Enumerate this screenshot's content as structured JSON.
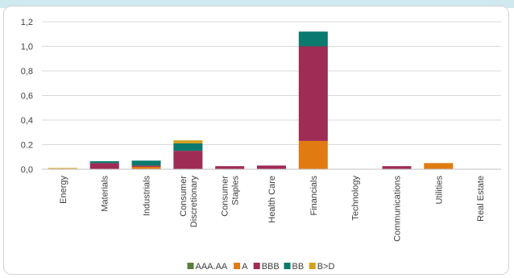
{
  "chart_data": {
    "type": "bar",
    "stacked": true,
    "categories": [
      "Energy",
      "Materials",
      "Industrials",
      "Consumer Discretionary",
      "Consumer Staples",
      "Health Care",
      "Financials",
      "Technology",
      "Communications",
      "Utilities",
      "Real Estate"
    ],
    "category_lines": [
      [
        "Energy"
      ],
      [
        "Materials"
      ],
      [
        "Industrials"
      ],
      [
        "Consumer",
        "Discretionary"
      ],
      [
        "Consumer",
        "Staples"
      ],
      [
        "Health Care"
      ],
      [
        "Financials"
      ],
      [
        "Technology"
      ],
      [
        "Communications"
      ],
      [
        "Utilities"
      ],
      [
        "Real Estate"
      ]
    ],
    "series": [
      {
        "name": "AAA.AA",
        "color": "#5b7f3a",
        "values": [
          0,
          0,
          0,
          0,
          0,
          0,
          0,
          0,
          0,
          0,
          0
        ]
      },
      {
        "name": "A",
        "color": "#e07b12",
        "values": [
          0.005,
          0,
          0.02,
          0,
          0,
          0,
          0.23,
          0,
          0,
          0.05,
          0
        ]
      },
      {
        "name": "BBB",
        "color": "#9e2c55",
        "values": [
          0,
          0.05,
          0.01,
          0.15,
          0.025,
          0.03,
          0.77,
          0,
          0.025,
          0,
          0
        ]
      },
      {
        "name": "BB",
        "color": "#0b7a6e",
        "values": [
          0,
          0.015,
          0.04,
          0.06,
          0,
          0,
          0.12,
          0,
          0,
          0,
          0
        ]
      },
      {
        "name": "B>D",
        "color": "#d1a11f",
        "values": [
          0.005,
          0,
          0,
          0.025,
          0,
          0,
          0,
          0,
          0,
          0,
          0
        ]
      }
    ],
    "y_ticks": [
      "0,0",
      "0.2",
      "0,4",
      "0,6",
      "0,8",
      "1,0",
      "1,2"
    ],
    "ylim": [
      0,
      1.2
    ],
    "grid": true,
    "legend_position": "bottom"
  }
}
